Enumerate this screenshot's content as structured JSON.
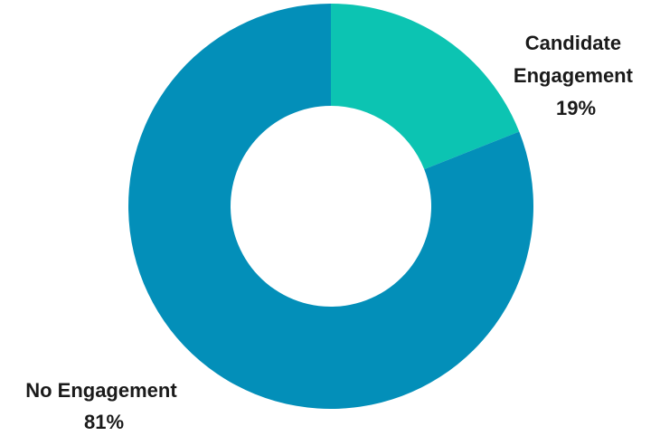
{
  "chart_data": {
    "type": "pie",
    "donut": true,
    "title": "",
    "slices": [
      {
        "label": "Candidate Engagement",
        "label_lines": [
          "Candidate",
          "Engagement"
        ],
        "percent_label": "19%",
        "value": 19,
        "color": "#0cc4b2"
      },
      {
        "label": "No Engagement",
        "label_lines": [
          "No Engagement"
        ],
        "percent_label": "81%",
        "value": 81,
        "color": "#038fb9"
      }
    ],
    "legend": "none",
    "start_angle": "12 o'clock",
    "direction": "clockwise"
  }
}
